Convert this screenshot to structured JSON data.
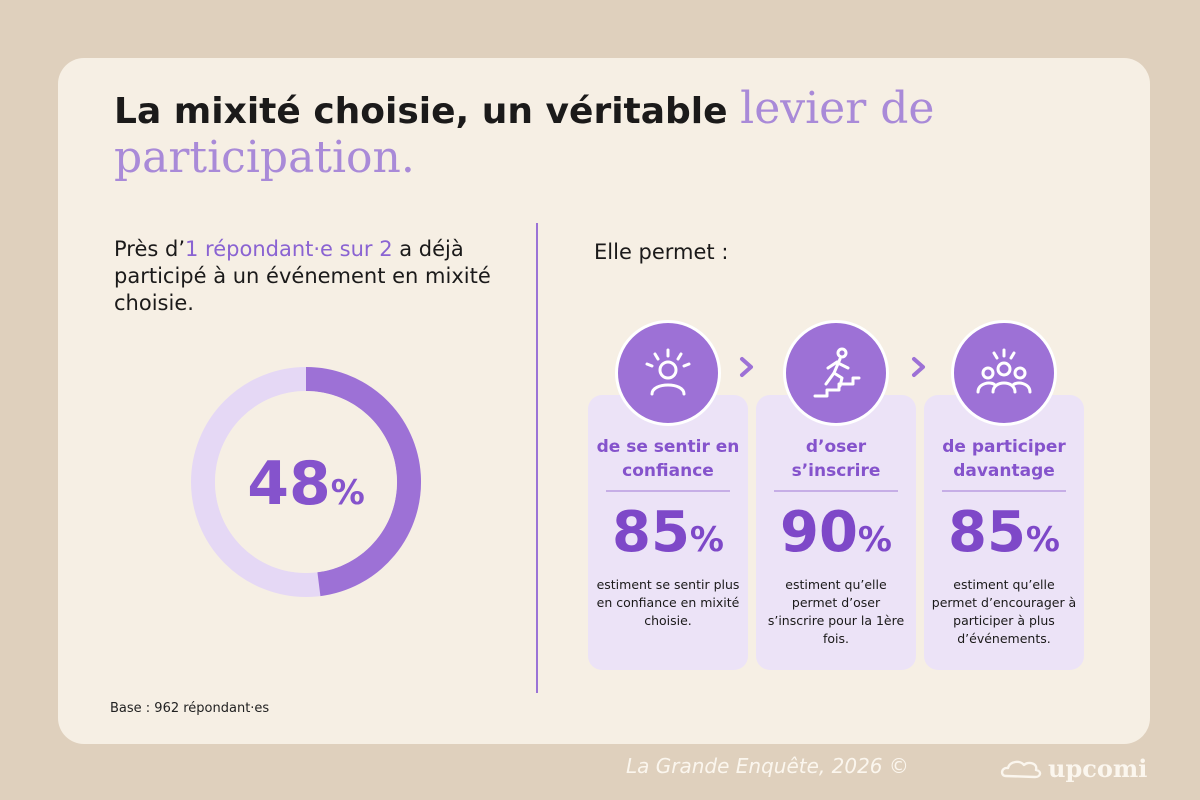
{
  "title": {
    "bold": "La mixité choisie, un véritable",
    "accent": "levier de participation."
  },
  "lead": {
    "before": "Près d’",
    "highlight": "1 répondant·e sur 2",
    "after": " a déjà participé à un événement en mixité choisie."
  },
  "donut": {
    "number": "48",
    "symbol": "%",
    "fraction": 0.48
  },
  "permet_label": "Elle permet :",
  "columns": [
    {
      "icon": "idea-person-icon",
      "heading": "de se sentir en confiance",
      "percent": "85",
      "symbol": "%",
      "description": "estiment se sentir plus en confiance en mixité choisie."
    },
    {
      "icon": "stairs-climbing-icon",
      "heading": "d’oser s’inscrire",
      "percent": "90",
      "symbol": "%",
      "description": "estiment qu’elle permet d’oser s’inscrire pour la 1ère fois."
    },
    {
      "icon": "group-people-icon",
      "heading": "de participer davantage",
      "percent": "85",
      "symbol": "%",
      "description": "estiment qu’elle permet d’encourager à participer à plus d’événements."
    }
  ],
  "base": "Base : 962 répondant·es",
  "footer": {
    "text": "La Grande Enquête, 2026 ©",
    "logo": "upcomi"
  },
  "colors": {
    "accent": "#9d71d6",
    "accent_dark": "#7e48c8",
    "background": "#dfd0bd",
    "card": "#f6efe4"
  },
  "chart_data": [
    {
      "type": "pie",
      "values": [
        48,
        52
      ],
      "labels": [
        "48%",
        ""
      ],
      "title": ""
    },
    {
      "type": "table",
      "categories": [
        "de se sentir en confiance",
        "d’oser s’inscrire",
        "de participer davantage"
      ],
      "values": [
        85,
        90,
        85
      ]
    }
  ]
}
